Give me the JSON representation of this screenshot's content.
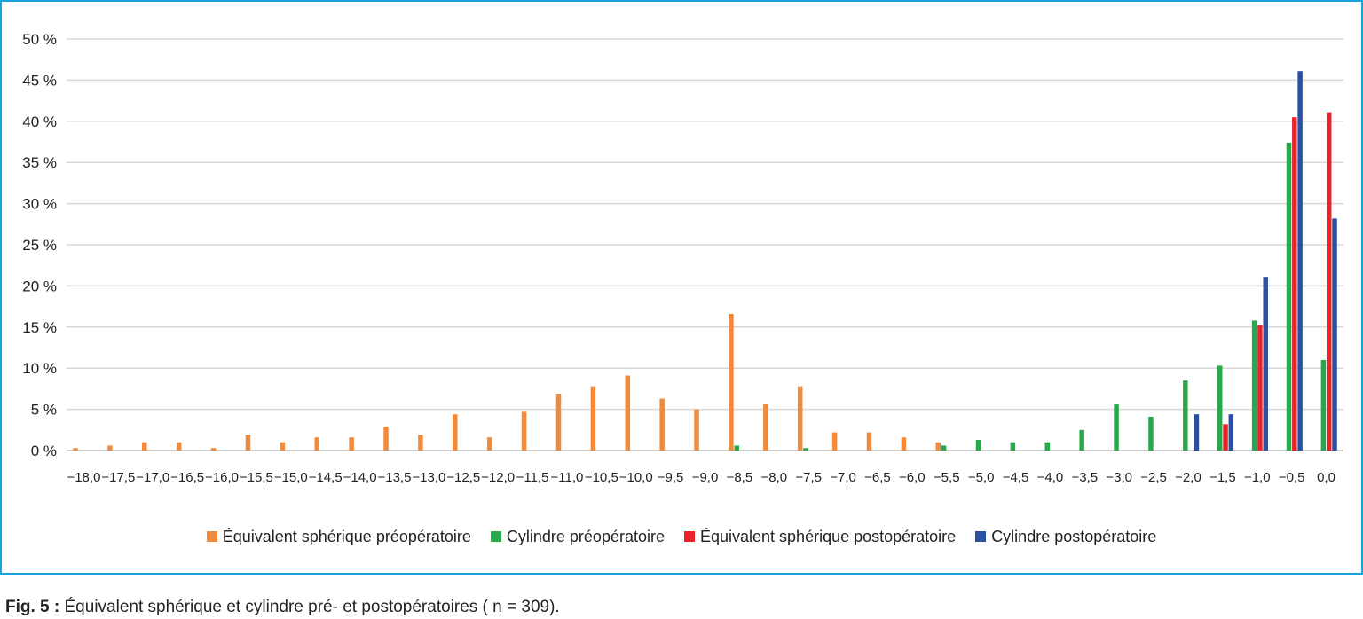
{
  "chart_data": {
    "type": "bar",
    "categories": [
      "−18,0",
      "−17,5",
      "−17,0",
      "−16,5",
      "−16,0",
      "−15,5",
      "−15,0",
      "−14,5",
      "−14,0",
      "−13,5",
      "−13,0",
      "−12,5",
      "−12,0",
      "−11,5",
      "−11,0",
      "−10,5",
      "−10,0",
      "−9,5",
      "−9,0",
      "−8,5",
      "−8,0",
      "−7,5",
      "−7,0",
      "−6,5",
      "−6,0",
      "−5,5",
      "−5,0",
      "−4,5",
      "−4,0",
      "−3,5",
      "−3,0",
      "−2,5",
      "−2,0",
      "−1,5",
      "−1,0",
      "−0,5",
      "0,0"
    ],
    "series": [
      {
        "name": "Équivalent sphérique préopératoire",
        "color": "#f08a3c",
        "values": [
          0.3,
          0.6,
          1.0,
          1.0,
          0.3,
          1.9,
          1.0,
          1.6,
          1.6,
          2.9,
          1.9,
          4.4,
          1.6,
          4.7,
          6.9,
          7.8,
          9.1,
          6.3,
          5.0,
          16.6,
          5.6,
          7.8,
          2.2,
          2.2,
          1.6,
          1.0,
          0,
          0,
          0,
          0,
          0,
          0,
          0,
          0,
          0,
          0,
          0
        ]
      },
      {
        "name": "Cylindre préopératoire",
        "color": "#27a84a",
        "values": [
          0,
          0,
          0,
          0,
          0,
          0,
          0,
          0,
          0,
          0,
          0,
          0,
          0,
          0,
          0,
          0,
          0,
          0,
          0,
          0.6,
          0,
          0.3,
          0,
          0,
          0,
          0.6,
          1.3,
          1.0,
          1.0,
          2.5,
          5.6,
          4.1,
          8.5,
          10.3,
          15.8,
          37.4,
          11.0
        ]
      },
      {
        "name": "Équivalent sphérique postopératoire",
        "color": "#e8242a",
        "values": [
          0,
          0,
          0,
          0,
          0,
          0,
          0,
          0,
          0,
          0,
          0,
          0,
          0,
          0,
          0,
          0,
          0,
          0,
          0,
          0,
          0,
          0,
          0,
          0,
          0,
          0,
          0,
          0,
          0,
          0,
          0,
          0,
          0,
          3.2,
          15.2,
          40.5,
          41.1
        ]
      },
      {
        "name": "Cylindre postopératoire",
        "color": "#2b4fa3",
        "values": [
          0,
          0,
          0,
          0,
          0,
          0,
          0,
          0,
          0,
          0,
          0,
          0,
          0,
          0,
          0,
          0,
          0,
          0,
          0,
          0,
          0,
          0,
          0,
          0,
          0,
          0,
          0,
          0,
          0,
          0,
          0,
          0,
          4.4,
          4.4,
          21.1,
          46.1,
          28.2
        ]
      }
    ],
    "yticks": [
      "0 %",
      "5 %",
      "10 %",
      "15 %",
      "20 %",
      "25 %",
      "30 %",
      "35 %",
      "40 %",
      "45 %",
      "50 %"
    ],
    "ylim": [
      0,
      50
    ],
    "grid": true,
    "legend_position": "bottom"
  },
  "caption": {
    "label": "Fig. 5 :",
    "text": " Équivalent sphérique et cylindre pré- et postopératoires ( n = 309)."
  }
}
